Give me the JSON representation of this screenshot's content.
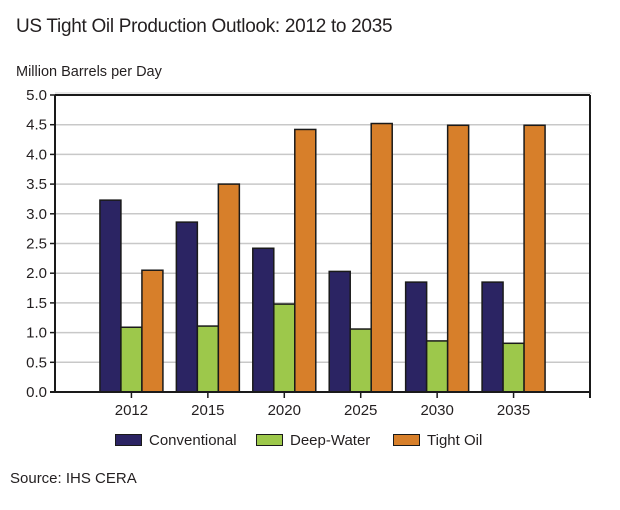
{
  "chart_data": {
    "type": "bar",
    "title": "US Tight Oil Production Outlook: 2012 to 2035",
    "xlabel": "",
    "ylabel": "Million Barrels per Day",
    "ylim": [
      0,
      5.0
    ],
    "yticks": [
      "0.0",
      "0.5",
      "1.0",
      "1.5",
      "2.0",
      "2.5",
      "3.0",
      "3.5",
      "4.0",
      "4.5",
      "5.0"
    ],
    "ytick_values": [
      0,
      0.5,
      1.0,
      1.5,
      2.0,
      2.5,
      3.0,
      3.5,
      4.0,
      4.5,
      5.0
    ],
    "grid": true,
    "legend_position": "bottom-center",
    "categories": [
      "2012",
      "2015",
      "2020",
      "2025",
      "2030",
      "2035"
    ],
    "series": [
      {
        "name": "Conventional",
        "color": "#2b2463",
        "values": [
          3.23,
          2.86,
          2.42,
          2.03,
          1.85,
          1.85
        ]
      },
      {
        "name": "Deep-Water",
        "color": "#9dc84b",
        "values": [
          1.09,
          1.11,
          1.48,
          1.06,
          0.86,
          0.82
        ]
      },
      {
        "name": "Tight Oil",
        "color": "#d77f2a",
        "values": [
          2.05,
          3.5,
          4.42,
          4.52,
          4.49,
          4.49
        ]
      }
    ],
    "source": "Source: IHS CERA"
  }
}
